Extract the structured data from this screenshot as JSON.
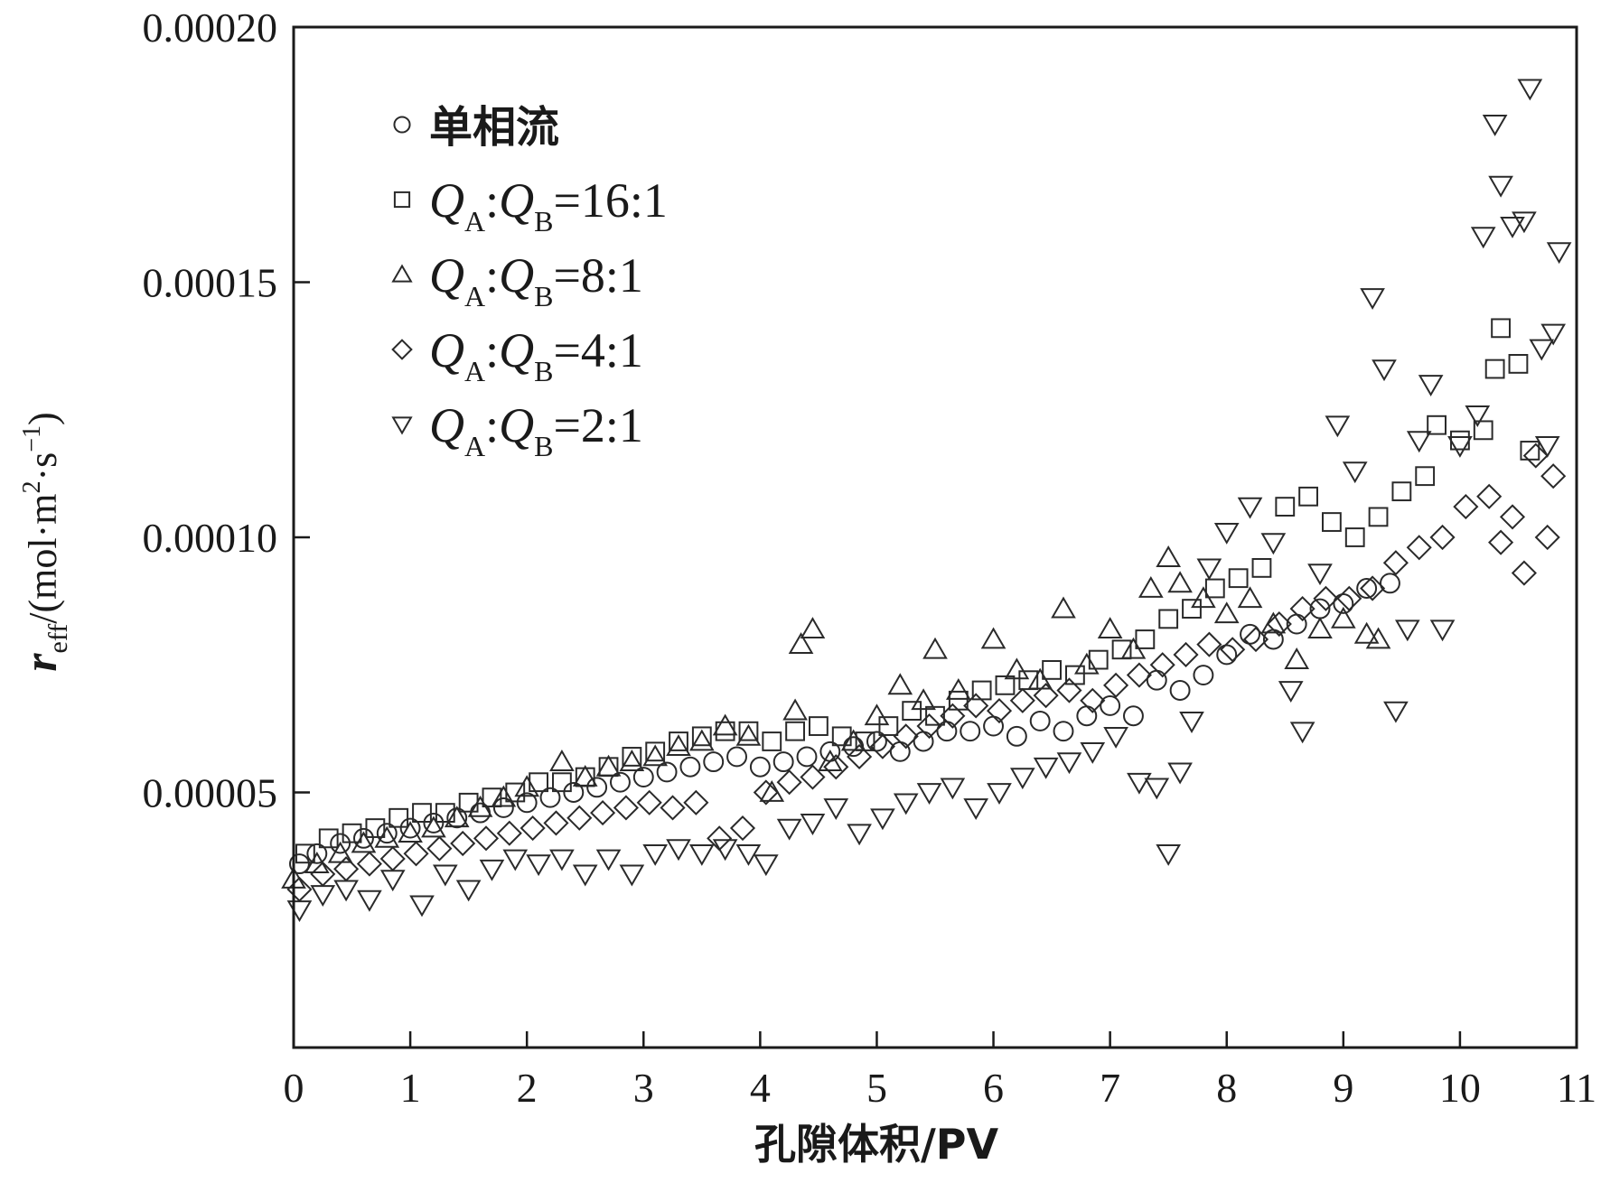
{
  "chart_data": {
    "type": "scatter",
    "title": "",
    "xlabel": "孔隙体积/PV",
    "ylabel": {
      "symbol": "r",
      "subscript": "eff",
      "unit_prefix": "/(mol·m",
      "unit_sup1": "2",
      "unit_mid": "·s",
      "unit_sup2": "−1",
      "unit_suffix": ")"
    },
    "xlim": [
      0,
      11
    ],
    "ylim": [
      0,
      0.0002
    ],
    "x_ticks": [
      0,
      1,
      2,
      3,
      4,
      5,
      6,
      7,
      8,
      9,
      10,
      11
    ],
    "x_tick_labels": [
      "0",
      "1",
      "2",
      "3",
      "4",
      "5",
      "6",
      "7",
      "8",
      "9",
      "10",
      "11"
    ],
    "y_ticks": [
      5e-05,
      0.0001,
      0.00015,
      0.0002
    ],
    "y_tick_labels": [
      "0.00005",
      "0.00010",
      "0.00015",
      "0.00020"
    ],
    "grid": false,
    "legend_position": "top-left",
    "series": [
      {
        "name": "单相流",
        "marker": "circle",
        "legend_label": {
          "plain": "单相流"
        },
        "points": [
          [
            0.05,
            3.6e-05
          ],
          [
            0.2,
            3.8e-05
          ],
          [
            0.4,
            4e-05
          ],
          [
            0.6,
            4.1e-05
          ],
          [
            0.8,
            4.2e-05
          ],
          [
            1.0,
            4.3e-05
          ],
          [
            1.2,
            4.4e-05
          ],
          [
            1.4,
            4.5e-05
          ],
          [
            1.6,
            4.6e-05
          ],
          [
            1.8,
            4.7e-05
          ],
          [
            2.0,
            4.8e-05
          ],
          [
            2.2,
            4.9e-05
          ],
          [
            2.4,
            5e-05
          ],
          [
            2.6,
            5.1e-05
          ],
          [
            2.8,
            5.2e-05
          ],
          [
            3.0,
            5.3e-05
          ],
          [
            3.2,
            5.4e-05
          ],
          [
            3.4,
            5.5e-05
          ],
          [
            3.6,
            5.6e-05
          ],
          [
            3.8,
            5.7e-05
          ],
          [
            4.0,
            5.5e-05
          ],
          [
            4.2,
            5.6e-05
          ],
          [
            4.4,
            5.7e-05
          ],
          [
            4.6,
            5.8e-05
          ],
          [
            4.8,
            5.9e-05
          ],
          [
            5.0,
            6e-05
          ],
          [
            5.2,
            5.8e-05
          ],
          [
            5.4,
            6e-05
          ],
          [
            5.6,
            6.2e-05
          ],
          [
            5.8,
            6.2e-05
          ],
          [
            6.0,
            6.3e-05
          ],
          [
            6.2,
            6.1e-05
          ],
          [
            6.4,
            6.4e-05
          ],
          [
            6.6,
            6.2e-05
          ],
          [
            6.8,
            6.5e-05
          ],
          [
            7.0,
            6.7e-05
          ],
          [
            7.2,
            6.5e-05
          ],
          [
            7.4,
            7.2e-05
          ],
          [
            7.6,
            7e-05
          ],
          [
            7.8,
            7.3e-05
          ],
          [
            8.0,
            7.7e-05
          ],
          [
            8.2,
            8.1e-05
          ],
          [
            8.4,
            8e-05
          ],
          [
            8.6,
            8.3e-05
          ],
          [
            8.8,
            8.6e-05
          ],
          [
            9.0,
            8.7e-05
          ],
          [
            9.2,
            9e-05
          ],
          [
            9.4,
            9.1e-05
          ]
        ]
      },
      {
        "name": "QA:QB=16:1",
        "marker": "square",
        "legend_label": {
          "q1": "Q",
          "sub1": "A",
          "colon": ":",
          "q2": "Q",
          "sub2": "B",
          "ratio": "=16:1"
        },
        "points": [
          [
            0.1,
            3.8e-05
          ],
          [
            0.3,
            4.1e-05
          ],
          [
            0.5,
            4.2e-05
          ],
          [
            0.7,
            4.3e-05
          ],
          [
            0.9,
            4.5e-05
          ],
          [
            1.1,
            4.6e-05
          ],
          [
            1.3,
            4.6e-05
          ],
          [
            1.5,
            4.8e-05
          ],
          [
            1.7,
            4.9e-05
          ],
          [
            1.9,
            5e-05
          ],
          [
            2.1,
            5.2e-05
          ],
          [
            2.3,
            5.2e-05
          ],
          [
            2.5,
            5.3e-05
          ],
          [
            2.7,
            5.5e-05
          ],
          [
            2.9,
            5.7e-05
          ],
          [
            3.1,
            5.8e-05
          ],
          [
            3.3,
            6e-05
          ],
          [
            3.5,
            6.1e-05
          ],
          [
            3.7,
            6.2e-05
          ],
          [
            3.9,
            6.2e-05
          ],
          [
            4.1,
            6e-05
          ],
          [
            4.3,
            6.2e-05
          ],
          [
            4.5,
            6.3e-05
          ],
          [
            4.7,
            6.1e-05
          ],
          [
            4.9,
            6e-05
          ],
          [
            5.1,
            6.3e-05
          ],
          [
            5.3,
            6.6e-05
          ],
          [
            5.5,
            6.5e-05
          ],
          [
            5.7,
            6.8e-05
          ],
          [
            5.9,
            7e-05
          ],
          [
            6.1,
            7.1e-05
          ],
          [
            6.3,
            7.2e-05
          ],
          [
            6.5,
            7.4e-05
          ],
          [
            6.7,
            7.3e-05
          ],
          [
            6.9,
            7.6e-05
          ],
          [
            7.1,
            7.8e-05
          ],
          [
            7.3,
            8e-05
          ],
          [
            7.5,
            8.4e-05
          ],
          [
            7.7,
            8.6e-05
          ],
          [
            7.9,
            9e-05
          ],
          [
            8.1,
            9.2e-05
          ],
          [
            8.3,
            9.4e-05
          ],
          [
            8.5,
            0.000106
          ],
          [
            8.7,
            0.000108
          ],
          [
            8.9,
            0.000103
          ],
          [
            9.1,
            0.0001
          ],
          [
            9.3,
            0.000104
          ],
          [
            9.5,
            0.000109
          ],
          [
            9.7,
            0.000112
          ],
          [
            9.8,
            0.000122
          ],
          [
            10.0,
            0.000119
          ],
          [
            10.2,
            0.000121
          ],
          [
            10.3,
            0.000133
          ],
          [
            10.35,
            0.000141
          ],
          [
            10.5,
            0.000134
          ],
          [
            10.6,
            0.000117
          ]
        ]
      },
      {
        "name": "QA:QB=8:1",
        "marker": "triangle-up",
        "legend_label": {
          "q1": "Q",
          "sub1": "A",
          "colon": ":",
          "q2": "Q",
          "sub2": "B",
          "ratio": "=8:1"
        },
        "points": [
          [
            0.0,
            3.3e-05
          ],
          [
            0.2,
            3.6e-05
          ],
          [
            0.4,
            3.8e-05
          ],
          [
            0.6,
            4e-05
          ],
          [
            0.8,
            4.1e-05
          ],
          [
            1.0,
            4.2e-05
          ],
          [
            1.2,
            4.3e-05
          ],
          [
            1.4,
            4.5e-05
          ],
          [
            1.6,
            4.7e-05
          ],
          [
            1.8,
            4.9e-05
          ],
          [
            2.0,
            5.1e-05
          ],
          [
            2.3,
            5.6e-05
          ],
          [
            2.5,
            5.3e-05
          ],
          [
            2.7,
            5.5e-05
          ],
          [
            2.9,
            5.6e-05
          ],
          [
            3.1,
            5.7e-05
          ],
          [
            3.3,
            5.9e-05
          ],
          [
            3.5,
            6e-05
          ],
          [
            3.7,
            6.3e-05
          ],
          [
            3.9,
            6.1e-05
          ],
          [
            4.1,
            5e-05
          ],
          [
            4.3,
            6.6e-05
          ],
          [
            4.35,
            7.9e-05
          ],
          [
            4.45,
            8.2e-05
          ],
          [
            4.6,
            5.6e-05
          ],
          [
            4.8,
            6e-05
          ],
          [
            5.0,
            6.5e-05
          ],
          [
            5.2,
            7.1e-05
          ],
          [
            5.4,
            6.8e-05
          ],
          [
            5.5,
            7.8e-05
          ],
          [
            5.7,
            7e-05
          ],
          [
            6.0,
            8e-05
          ],
          [
            6.2,
            7.4e-05
          ],
          [
            6.4,
            7.2e-05
          ],
          [
            6.6,
            8.6e-05
          ],
          [
            6.8,
            7.5e-05
          ],
          [
            7.0,
            8.2e-05
          ],
          [
            7.2,
            7.8e-05
          ],
          [
            7.35,
            9e-05
          ],
          [
            7.5,
            9.6e-05
          ],
          [
            7.6,
            9.1e-05
          ],
          [
            7.8,
            8.8e-05
          ],
          [
            8.0,
            8.5e-05
          ],
          [
            8.2,
            8.8e-05
          ],
          [
            8.4,
            8.3e-05
          ],
          [
            8.6,
            7.6e-05
          ],
          [
            8.8,
            8.2e-05
          ],
          [
            9.0,
            8.4e-05
          ],
          [
            9.2,
            8.1e-05
          ],
          [
            9.3,
            8e-05
          ]
        ]
      },
      {
        "name": "QA:QB=4:1",
        "marker": "diamond",
        "legend_label": {
          "q1": "Q",
          "sub1": "A",
          "colon": ":",
          "q2": "Q",
          "sub2": "B",
          "ratio": "=4:1"
        },
        "points": [
          [
            0.05,
            3.1e-05
          ],
          [
            0.25,
            3.4e-05
          ],
          [
            0.45,
            3.5e-05
          ],
          [
            0.65,
            3.6e-05
          ],
          [
            0.85,
            3.7e-05
          ],
          [
            1.05,
            3.8e-05
          ],
          [
            1.25,
            3.9e-05
          ],
          [
            1.45,
            4e-05
          ],
          [
            1.65,
            4.1e-05
          ],
          [
            1.85,
            4.2e-05
          ],
          [
            2.05,
            4.3e-05
          ],
          [
            2.25,
            4.4e-05
          ],
          [
            2.45,
            4.5e-05
          ],
          [
            2.65,
            4.6e-05
          ],
          [
            2.85,
            4.7e-05
          ],
          [
            3.05,
            4.8e-05
          ],
          [
            3.25,
            4.7e-05
          ],
          [
            3.45,
            4.8e-05
          ],
          [
            3.65,
            4.1e-05
          ],
          [
            3.85,
            4.3e-05
          ],
          [
            4.05,
            5e-05
          ],
          [
            4.25,
            5.2e-05
          ],
          [
            4.45,
            5.3e-05
          ],
          [
            4.65,
            5.5e-05
          ],
          [
            4.85,
            5.7e-05
          ],
          [
            5.05,
            5.9e-05
          ],
          [
            5.25,
            6.1e-05
          ],
          [
            5.45,
            6.3e-05
          ],
          [
            5.65,
            6.5e-05
          ],
          [
            5.85,
            6.7e-05
          ],
          [
            6.05,
            6.6e-05
          ],
          [
            6.25,
            6.8e-05
          ],
          [
            6.45,
            6.9e-05
          ],
          [
            6.65,
            7e-05
          ],
          [
            6.85,
            6.8e-05
          ],
          [
            7.05,
            7.1e-05
          ],
          [
            7.25,
            7.3e-05
          ],
          [
            7.45,
            7.5e-05
          ],
          [
            7.65,
            7.7e-05
          ],
          [
            7.85,
            7.9e-05
          ],
          [
            8.05,
            7.8e-05
          ],
          [
            8.25,
            8e-05
          ],
          [
            8.45,
            8.3e-05
          ],
          [
            8.65,
            8.6e-05
          ],
          [
            8.85,
            8.8e-05
          ],
          [
            9.05,
            8.8e-05
          ],
          [
            9.25,
            9e-05
          ],
          [
            9.45,
            9.5e-05
          ],
          [
            9.65,
            9.8e-05
          ],
          [
            9.85,
            0.0001
          ],
          [
            10.05,
            0.000106
          ],
          [
            10.25,
            0.000108
          ],
          [
            10.35,
            9.9e-05
          ],
          [
            10.45,
            0.000104
          ],
          [
            10.55,
            9.3e-05
          ],
          [
            10.65,
            0.000116
          ],
          [
            10.75,
            0.0001
          ],
          [
            10.8,
            0.000112
          ]
        ]
      },
      {
        "name": "QA:QB=2:1",
        "marker": "triangle-down",
        "legend_label": {
          "q1": "Q",
          "sub1": "A",
          "colon": ":",
          "q2": "Q",
          "sub2": "B",
          "ratio": "=2:1"
        },
        "points": [
          [
            0.05,
            2.7e-05
          ],
          [
            0.25,
            3e-05
          ],
          [
            0.45,
            3.1e-05
          ],
          [
            0.65,
            2.9e-05
          ],
          [
            0.85,
            3.3e-05
          ],
          [
            1.1,
            2.8e-05
          ],
          [
            1.3,
            3.4e-05
          ],
          [
            1.5,
            3.1e-05
          ],
          [
            1.7,
            3.5e-05
          ],
          [
            1.9,
            3.7e-05
          ],
          [
            2.1,
            3.6e-05
          ],
          [
            2.3,
            3.7e-05
          ],
          [
            2.5,
            3.4e-05
          ],
          [
            2.7,
            3.7e-05
          ],
          [
            2.9,
            3.4e-05
          ],
          [
            3.1,
            3.8e-05
          ],
          [
            3.3,
            3.9e-05
          ],
          [
            3.5,
            3.8e-05
          ],
          [
            3.7,
            3.9e-05
          ],
          [
            3.9,
            3.8e-05
          ],
          [
            4.05,
            3.6e-05
          ],
          [
            4.25,
            4.3e-05
          ],
          [
            4.45,
            4.4e-05
          ],
          [
            4.65,
            4.7e-05
          ],
          [
            4.85,
            4.2e-05
          ],
          [
            5.05,
            4.5e-05
          ],
          [
            5.25,
            4.8e-05
          ],
          [
            5.45,
            5e-05
          ],
          [
            5.65,
            5.1e-05
          ],
          [
            5.85,
            4.7e-05
          ],
          [
            6.05,
            5e-05
          ],
          [
            6.25,
            5.3e-05
          ],
          [
            6.45,
            5.5e-05
          ],
          [
            6.65,
            5.6e-05
          ],
          [
            6.85,
            5.8e-05
          ],
          [
            7.05,
            6.1e-05
          ],
          [
            7.25,
            5.2e-05
          ],
          [
            7.4,
            5.1e-05
          ],
          [
            7.5,
            3.8e-05
          ],
          [
            7.6,
            5.4e-05
          ],
          [
            7.7,
            6.4e-05
          ],
          [
            7.85,
            9.4e-05
          ],
          [
            8.0,
            0.000101
          ],
          [
            8.2,
            0.000106
          ],
          [
            8.4,
            9.9e-05
          ],
          [
            8.55,
            7e-05
          ],
          [
            8.65,
            6.2e-05
          ],
          [
            8.8,
            9.3e-05
          ],
          [
            8.95,
            0.000122
          ],
          [
            9.1,
            0.000113
          ],
          [
            9.25,
            0.000147
          ],
          [
            9.35,
            0.000133
          ],
          [
            9.45,
            6.6e-05
          ],
          [
            9.55,
            8.2e-05
          ],
          [
            9.65,
            0.000119
          ],
          [
            9.75,
            0.00013
          ],
          [
            9.85,
            8.2e-05
          ],
          [
            10.0,
            0.000118
          ],
          [
            10.15,
            0.000124
          ],
          [
            10.2,
            0.000159
          ],
          [
            10.3,
            0.000181
          ],
          [
            10.35,
            0.000169
          ],
          [
            10.45,
            0.000161
          ],
          [
            10.55,
            0.000162
          ],
          [
            10.6,
            0.000188
          ],
          [
            10.7,
            0.000137
          ],
          [
            10.75,
            0.000118
          ],
          [
            10.8,
            0.00014
          ],
          [
            10.85,
            0.000156
          ]
        ]
      }
    ]
  }
}
